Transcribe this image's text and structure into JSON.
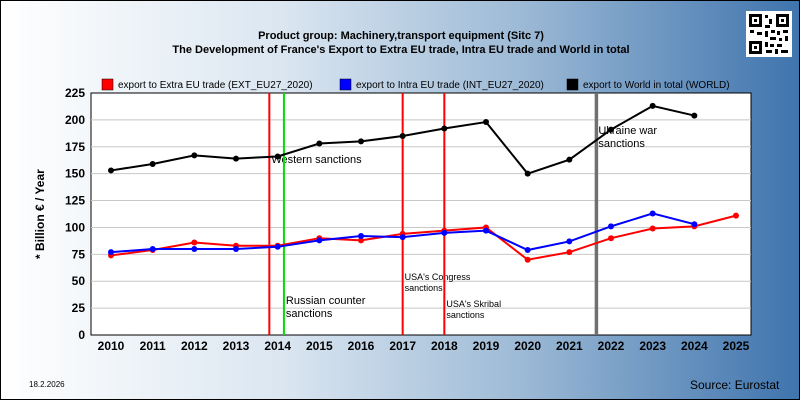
{
  "chart_data": {
    "type": "line",
    "title": "Product group: Machinery,transport equipment (Sitc 7)",
    "subtitle": "The Development of France's Export to Extra EU trade, Intra EU trade and World in total",
    "ylabel": "* Billion € / Year",
    "xlabel": "",
    "ylim": [
      0,
      225
    ],
    "yticks": [
      0,
      25,
      50,
      75,
      100,
      125,
      150,
      175,
      200,
      225
    ],
    "x": [
      2010,
      2011,
      2012,
      2013,
      2014,
      2015,
      2016,
      2017,
      2018,
      2019,
      2020,
      2021,
      2022,
      2023,
      2024,
      2025
    ],
    "grid": true,
    "legend_position": "top",
    "series": [
      {
        "name": "export to Extra EU trade (EXT_EU27_2020)",
        "color": "#ff0000",
        "values": [
          74,
          79,
          86,
          83,
          83,
          90,
          88,
          94,
          97,
          100,
          70,
          77,
          90,
          99,
          101,
          111
        ]
      },
      {
        "name": "export to Intra EU trade (INT_EU27_2020)",
        "color": "#0000ff",
        "values": [
          77,
          80,
          80,
          80,
          82,
          88,
          92,
          91,
          95,
          97,
          79,
          87,
          101,
          113,
          103,
          null
        ]
      },
      {
        "name": "export to World in total (WORLD)",
        "color": "#000000",
        "values": [
          153,
          159,
          167,
          164,
          166,
          178,
          180,
          185,
          192,
          198,
          150,
          163,
          191,
          213,
          204,
          null
        ]
      }
    ],
    "events": [
      {
        "x": 2013.8,
        "color": "#ff0000",
        "label": "Western sanctions",
        "label_y": 160,
        "small": false
      },
      {
        "x": 2014.15,
        "color": "#00dd00",
        "label": "Russian counter sanctions",
        "label_y": 29,
        "small": false
      },
      {
        "x": 2017.0,
        "color": "#ff0000",
        "label": "USA's Congress sanctions",
        "label_y": 51,
        "small": true
      },
      {
        "x": 2018.0,
        "color": "#ff0000",
        "label": "USA's Skribal sanctions",
        "label_y": 26,
        "small": true
      },
      {
        "x": 2021.65,
        "color": "#707070",
        "label": "Ukraine war sanctions",
        "label_y": 187,
        "small": false
      }
    ]
  },
  "footer": {
    "date": "18.2.2026",
    "source": "Source: Eurostat"
  },
  "qr_icon": "qr-code-icon"
}
